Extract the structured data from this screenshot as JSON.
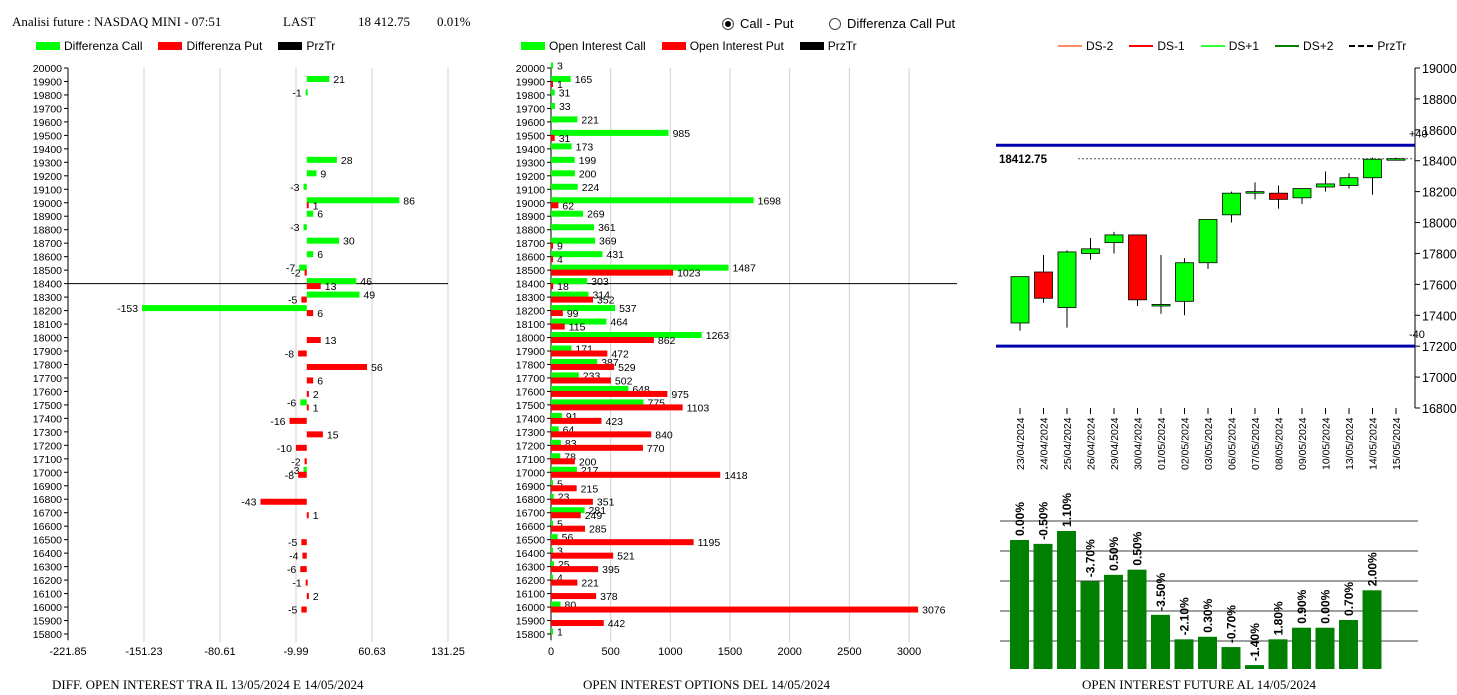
{
  "header": {
    "title": "Analisi future : NASDAQ MINI - 07:51",
    "last_label": "LAST",
    "last_value": "18 412.75",
    "change": "0.01%"
  },
  "radio": [
    {
      "label": "Call - Put",
      "selected": true
    },
    {
      "label": "Differenza Call Put",
      "selected": false
    }
  ],
  "legend_left": [
    {
      "label": "Differenza Call",
      "color": "#00ff00"
    },
    {
      "label": "Differenza Put",
      "color": "#ff0000"
    },
    {
      "label": "PrzTr",
      "color": "#000000"
    }
  ],
  "legend_mid": [
    {
      "label": "Open Interest Call",
      "color": "#00ff00"
    },
    {
      "label": "Open Interest Put",
      "color": "#ff0000"
    },
    {
      "label": "PrzTr",
      "color": "#000000"
    }
  ],
  "legend_right": [
    {
      "label": "DS-2",
      "color": "#ff8c69",
      "style": "solid"
    },
    {
      "label": "DS-1",
      "color": "#ff0000",
      "style": "solid"
    },
    {
      "label": "DS+1",
      "color": "#33ff33",
      "style": "solid"
    },
    {
      "label": "DS+2",
      "color": "#008000",
      "style": "solid"
    },
    {
      "label": "PrzTr",
      "color": "#000000",
      "style": "dashed"
    }
  ],
  "captions": {
    "left": "DIFF. OPEN INTEREST TRA IL 13/05/2024 E 14/05/2024",
    "mid": "OPEN INTEREST OPTIONS DEL 14/05/2024",
    "right": "OPEN INTEREST FUTURE AL 14/05/2024"
  },
  "colors": {
    "call": "#00ff00",
    "put": "#ff0000",
    "blue_line": "#0000aa",
    "future_bar": "#008000"
  },
  "chart_data": [
    {
      "type": "bar",
      "orientation": "horizontal",
      "id": "diff",
      "categories": [
        "20000",
        "19900",
        "19800",
        "19700",
        "19600",
        "19500",
        "19400",
        "19300",
        "19200",
        "19100",
        "19000",
        "18900",
        "18800",
        "18700",
        "18600",
        "18500",
        "18400",
        "18300",
        "18200",
        "18100",
        "18000",
        "17900",
        "17800",
        "17700",
        "17600",
        "17500",
        "17400",
        "17300",
        "17200",
        "17100",
        "17000",
        "16900",
        "16800",
        "16700",
        "16600",
        "16500",
        "16400",
        "16300",
        "16200",
        "16100",
        "16000",
        "15900",
        "15800"
      ],
      "xticks": [
        "-221.85",
        "-151.23",
        "-80.61",
        "-9.99",
        "60.63",
        "131.25"
      ],
      "xlim": [
        -221.85,
        131.25
      ],
      "price_line": "18400",
      "series": [
        {
          "name": "Differenza Call",
          "color": "#00ff00",
          "values": [
            null,
            21,
            -1,
            null,
            null,
            null,
            null,
            28,
            9,
            -3,
            86,
            6,
            -3,
            30,
            6,
            -7,
            46,
            49,
            -153,
            null,
            null,
            null,
            null,
            null,
            null,
            -6,
            null,
            null,
            null,
            null,
            -3,
            null,
            null,
            null,
            null,
            null,
            null,
            null,
            null,
            null,
            null,
            null,
            null
          ]
        },
        {
          "name": "Differenza Put",
          "color": "#ff0000",
          "values": [
            null,
            null,
            null,
            null,
            null,
            null,
            null,
            null,
            null,
            null,
            1,
            null,
            null,
            null,
            null,
            -2,
            13,
            -5,
            6,
            null,
            13,
            -8,
            56,
            6,
            2,
            1,
            -16,
            15,
            -10,
            -2,
            -8,
            null,
            -43,
            1,
            null,
            -5,
            -4,
            -6,
            -1,
            2,
            -5,
            null,
            null
          ]
        },
        {
          "name": "Differenza Put labels",
          "values": [
            null,
            null,
            null,
            null,
            null,
            null,
            null,
            null,
            null,
            null,
            null,
            null,
            null,
            null,
            null,
            null,
            null,
            null,
            null,
            null,
            -1,
            null,
            null,
            -1,
            null,
            null,
            null,
            null,
            null,
            null,
            null,
            null,
            null,
            null,
            null,
            null,
            null,
            null,
            null,
            null,
            null,
            null,
            null
          ]
        }
      ]
    },
    {
      "type": "bar",
      "orientation": "horizontal",
      "id": "oi",
      "categories": [
        "20000",
        "19900",
        "19800",
        "19700",
        "19600",
        "19500",
        "19400",
        "19300",
        "19200",
        "19100",
        "19000",
        "18900",
        "18800",
        "18700",
        "18600",
        "18500",
        "18400",
        "18300",
        "18200",
        "18100",
        "18000",
        "17900",
        "17800",
        "17700",
        "17600",
        "17500",
        "17400",
        "17300",
        "17200",
        "17100",
        "17000",
        "16900",
        "16800",
        "16700",
        "16600",
        "16500",
        "16400",
        "16300",
        "16200",
        "16100",
        "16000",
        "15900",
        "15800"
      ],
      "xticks": [
        "0",
        "500",
        "1000",
        "1500",
        "2000",
        "2500",
        "3000"
      ],
      "xlim": [
        0,
        3100
      ],
      "price_line": "18400",
      "series": [
        {
          "name": "Open Interest Call",
          "color": "#00ff00",
          "values": [
            3,
            165,
            31,
            33,
            221,
            985,
            173,
            199,
            200,
            224,
            1698,
            269,
            361,
            369,
            431,
            1487,
            303,
            314,
            537,
            464,
            1263,
            171,
            387,
            233,
            648,
            775,
            91,
            64,
            83,
            78,
            217,
            5,
            23,
            281,
            5,
            56,
            3,
            25,
            4,
            null,
            80,
            null,
            1
          ]
        },
        {
          "name": "Open Interest Put",
          "color": "#ff0000",
          "values": [
            null,
            1,
            null,
            null,
            null,
            31,
            null,
            null,
            null,
            null,
            62,
            null,
            null,
            9,
            4,
            1023,
            18,
            352,
            99,
            115,
            862,
            472,
            529,
            502,
            975,
            1103,
            423,
            840,
            770,
            200,
            1418,
            215,
            351,
            249,
            285,
            1195,
            521,
            395,
            221,
            378,
            3076,
            442,
            null
          ]
        }
      ]
    },
    {
      "type": "candlestick",
      "id": "future",
      "categories": [
        "23/04/2024",
        "24/04/2024",
        "25/04/2024",
        "26/04/2024",
        "29/04/2024",
        "30/04/2024",
        "01/05/2024",
        "02/05/2024",
        "03/05/2024",
        "06/05/2024",
        "07/05/2024",
        "08/05/2024",
        "09/05/2024",
        "10/05/2024",
        "13/05/2024",
        "14/05/2024",
        "15/05/2024"
      ],
      "candles": [
        {
          "o": 17350,
          "h": 17650,
          "l": 17300,
          "c": 17650
        },
        {
          "o": 17680,
          "h": 17790,
          "l": 17480,
          "c": 17510
        },
        {
          "o": 17450,
          "h": 17820,
          "l": 17320,
          "c": 17810
        },
        {
          "o": 17800,
          "h": 17900,
          "l": 17760,
          "c": 17830
        },
        {
          "o": 17870,
          "h": 17940,
          "l": 17800,
          "c": 17920
        },
        {
          "o": 17920,
          "h": 17920,
          "l": 17460,
          "c": 17500
        },
        {
          "o": 17460,
          "h": 17790,
          "l": 17410,
          "c": 17470
        },
        {
          "o": 17490,
          "h": 17770,
          "l": 17400,
          "c": 17740
        },
        {
          "o": 17740,
          "h": 18020,
          "l": 17700,
          "c": 18020
        },
        {
          "o": 18050,
          "h": 18200,
          "l": 18000,
          "c": 18190
        },
        {
          "o": 18190,
          "h": 18260,
          "l": 18150,
          "c": 18200
        },
        {
          "o": 18190,
          "h": 18240,
          "l": 18090,
          "c": 18150
        },
        {
          "o": 18160,
          "h": 18220,
          "l": 18120,
          "c": 18220
        },
        {
          "o": 18230,
          "h": 18330,
          "l": 18200,
          "c": 18250
        },
        {
          "o": 18240,
          "h": 18320,
          "l": 18220,
          "c": 18290
        },
        {
          "o": 18290,
          "h": 18420,
          "l": 18180,
          "c": 18410
        },
        {
          "o": 18413,
          "h": 18420,
          "l": 18405,
          "c": 18413
        }
      ],
      "ylim": [
        16800,
        19000
      ],
      "yticks": [
        "16800",
        "17000",
        "17200",
        "17400",
        "17600",
        "17800",
        "18000",
        "18200",
        "18400",
        "18600",
        "18800",
        "19000"
      ],
      "upper_line": {
        "value": 18500,
        "label": "+40"
      },
      "lower_line": {
        "value": 17200,
        "label": "-40"
      },
      "price": {
        "value": 18412.75,
        "label": "18412.75"
      }
    },
    {
      "type": "bar",
      "id": "future_oi",
      "categories": [
        "23/04/2024",
        "24/04/2024",
        "25/04/2024",
        "26/04/2024",
        "29/04/2024",
        "30/04/2024",
        "01/05/2024",
        "02/05/2024",
        "03/05/2024",
        "06/05/2024",
        "07/05/2024",
        "08/05/2024",
        "09/05/2024",
        "10/05/2024",
        "13/05/2024",
        "14/05/2024"
      ],
      "values": [
        100,
        97,
        107,
        68,
        73,
        77,
        42,
        23,
        25,
        17,
        3,
        23,
        32,
        32,
        38,
        61
      ],
      "labels": [
        "0.00%",
        "-0.50%",
        "1.10%",
        "-3.70%",
        "0.50%",
        "0.50%",
        "-3.50%",
        "-2.10%",
        "0.30%",
        "-0.70%",
        "-1.40%",
        "1.80%",
        "0.90%",
        "0.00%",
        "0.70%",
        "2.00%"
      ]
    }
  ]
}
